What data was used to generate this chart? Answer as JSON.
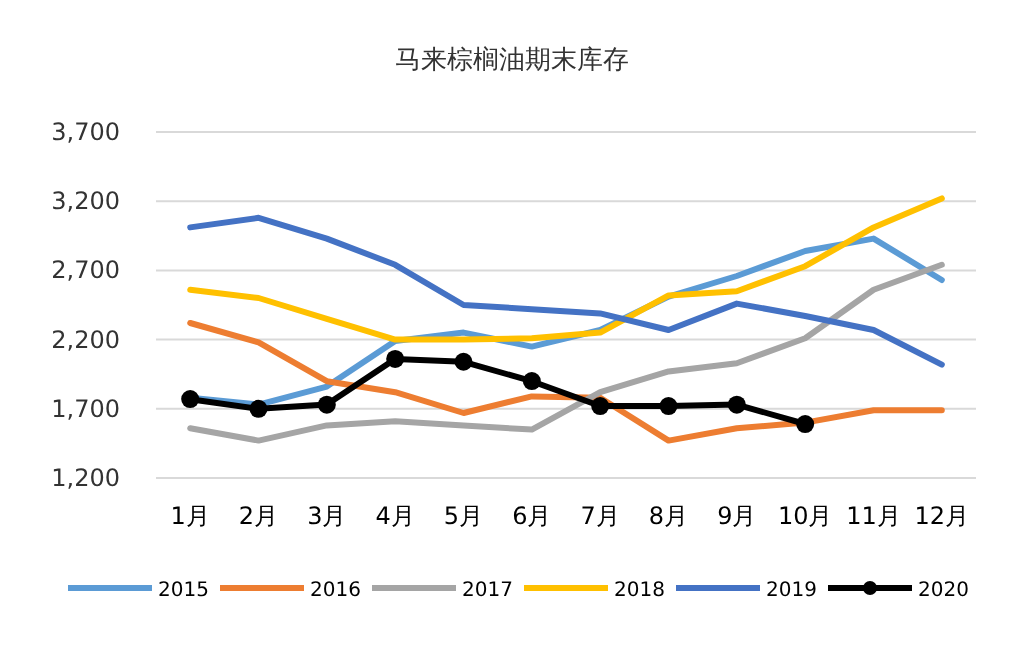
{
  "chart_data": {
    "type": "line",
    "title": "马来棕榈油期末库存",
    "categories": [
      "1月",
      "2月",
      "3月",
      "4月",
      "5月",
      "6月",
      "7月",
      "8月",
      "9月",
      "10月",
      "11月",
      "12月"
    ],
    "series": [
      {
        "name": "2015",
        "color": "#5b9bd5",
        "marker": "none",
        "values": [
          1780,
          1730,
          1860,
          2190,
          2250,
          2150,
          2270,
          2510,
          2660,
          2840,
          2930,
          2630
        ]
      },
      {
        "name": "2016",
        "color": "#ed7d31",
        "marker": "none",
        "values": [
          2320,
          2180,
          1900,
          1820,
          1670,
          1790,
          1780,
          1470,
          1560,
          1600,
          1690,
          1690
        ]
      },
      {
        "name": "2017",
        "color": "#a5a5a5",
        "marker": "none",
        "values": [
          1560,
          1470,
          1580,
          1610,
          1580,
          1550,
          1820,
          1970,
          2030,
          2210,
          2560,
          2740
        ]
      },
      {
        "name": "2018",
        "color": "#ffc000",
        "marker": "none",
        "values": [
          2560,
          2500,
          2350,
          2200,
          2200,
          2210,
          2250,
          2520,
          2550,
          2730,
          3010,
          3220
        ]
      },
      {
        "name": "2019",
        "color": "#4472c4",
        "marker": "none",
        "values": [
          3010,
          3080,
          2930,
          2740,
          2450,
          2420,
          2390,
          2270,
          2460,
          2370,
          2270,
          2020
        ]
      },
      {
        "name": "2020",
        "color": "#000000",
        "marker": "circle",
        "values": [
          1770,
          1700,
          1730,
          2060,
          2040,
          1900,
          1720,
          1720,
          1730,
          1590,
          null,
          null
        ]
      }
    ],
    "ylim": [
      1200,
      3700
    ],
    "yticks": [
      {
        "value": 1200,
        "label": "1,200"
      },
      {
        "value": 1700,
        "label": "1,700"
      },
      {
        "value": 2200,
        "label": "2,200"
      },
      {
        "value": 2700,
        "label": "2,700"
      },
      {
        "value": 3200,
        "label": "3,200"
      },
      {
        "value": 3700,
        "label": "3,700"
      }
    ],
    "grid": "y",
    "legend": "bottom"
  }
}
